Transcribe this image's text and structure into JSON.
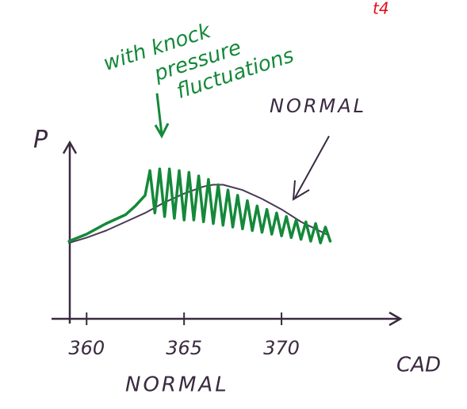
{
  "chart_data": {
    "type": "line",
    "y_label": "P",
    "x_label": "CAD",
    "caption": "NORMAL",
    "annotations": [
      "with knock",
      "pressure",
      "fluctuations",
      "NORMAL",
      "t4"
    ],
    "xlim": [
      358.2,
      376.1
    ],
    "xticks": [
      360,
      365,
      370
    ],
    "ylim": [
      0,
      10
    ],
    "series": [
      {
        "color": "#4a3a55",
        "x": [
          359.1,
          360,
          361,
          362,
          363,
          364,
          365,
          366,
          366.5,
          367,
          368,
          369,
          370,
          371,
          372.3
        ],
        "values": [
          4.3,
          4.6,
          5.0,
          5.5,
          6.0,
          6.6,
          7.1,
          7.5,
          7.6,
          7.6,
          7.3,
          6.8,
          6.2,
          5.5,
          4.8
        ]
      },
      {
        "color": "#14893a",
        "x": [
          359.1,
          360,
          361,
          362,
          362.5,
          363.0,
          363.25,
          363.5,
          363.75,
          364.0,
          364.25,
          364.5,
          364.75,
          365.0,
          365.25,
          365.5,
          365.75,
          366.0,
          366.25,
          366.5,
          366.75,
          367.0,
          367.25,
          367.5,
          367.75,
          368.0,
          368.25,
          368.5,
          368.75,
          369.0,
          369.25,
          369.5,
          369.75,
          370.0,
          370.25,
          370.5,
          370.75,
          371.0,
          371.25,
          371.5,
          371.75,
          372.0,
          372.25,
          372.5
        ],
        "values": [
          4.4,
          4.8,
          5.4,
          5.9,
          6.4,
          7.0,
          8.4,
          6.0,
          8.5,
          5.8,
          8.5,
          5.7,
          8.4,
          5.6,
          8.3,
          5.6,
          8.1,
          5.5,
          7.9,
          5.4,
          7.6,
          5.3,
          7.3,
          5.2,
          7.0,
          5.1,
          6.7,
          5.0,
          6.4,
          4.9,
          6.2,
          4.8,
          6.0,
          4.7,
          5.8,
          4.6,
          5.6,
          4.5,
          5.5,
          4.4,
          5.4,
          4.3,
          5.2,
          4.4
        ]
      }
    ]
  }
}
